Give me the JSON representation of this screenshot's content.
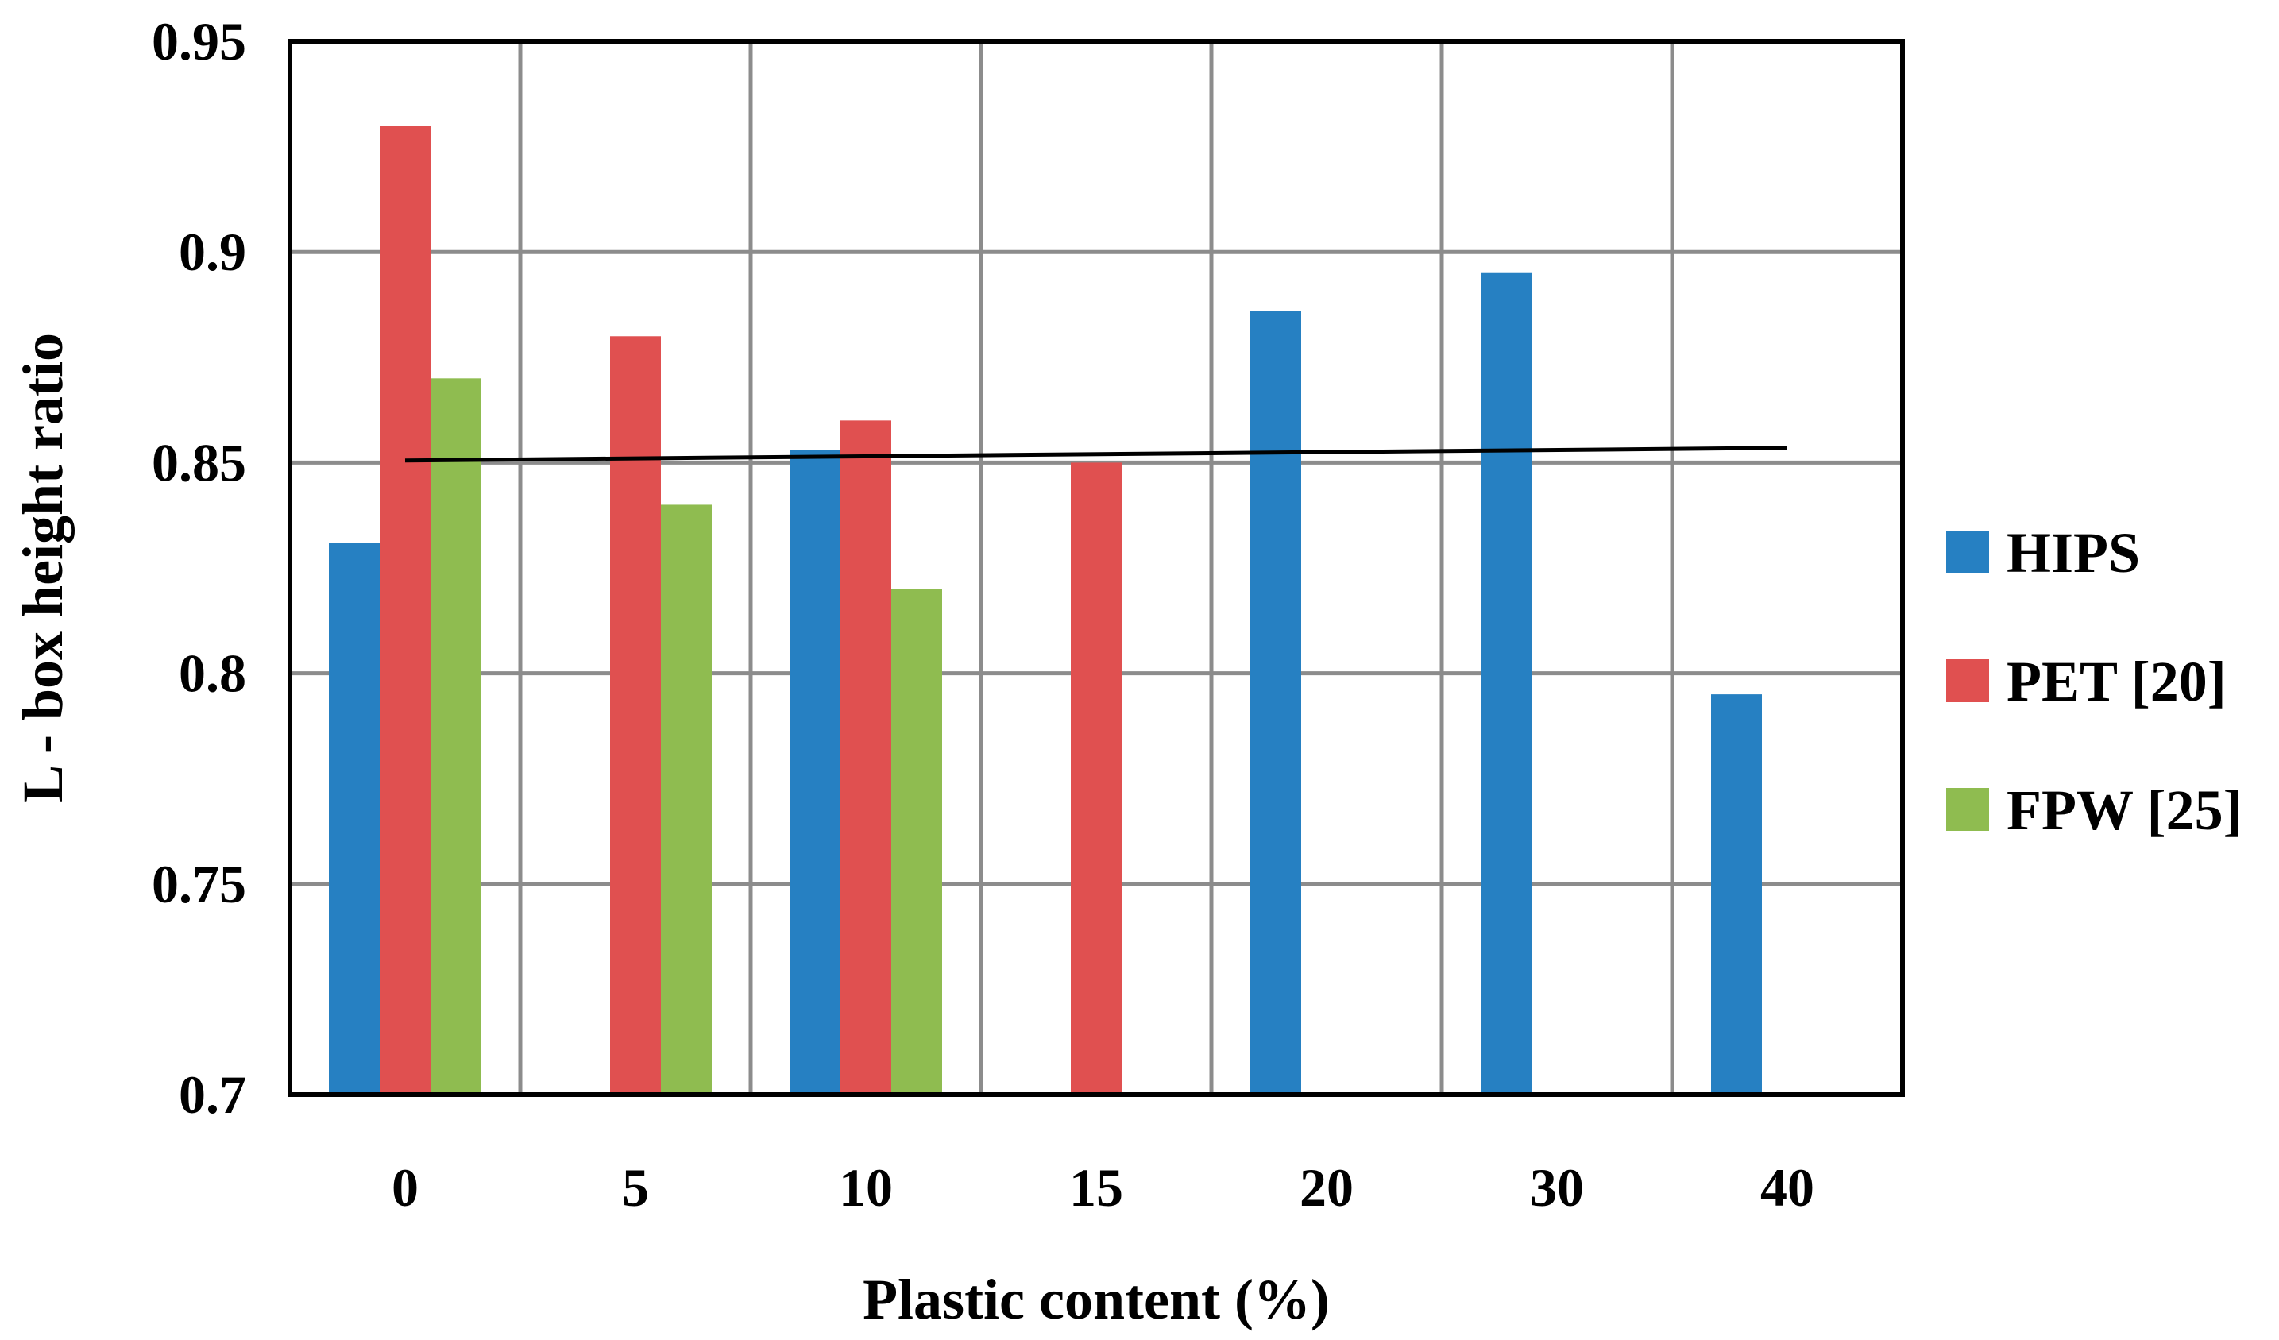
{
  "chart_data": {
    "type": "bar",
    "categories": [
      "0",
      "5",
      "10",
      "15",
      "20",
      "30",
      "40"
    ],
    "series": [
      {
        "name": "HIPS",
        "color": "#2680c2",
        "values": [
          0.831,
          null,
          0.853,
          null,
          0.886,
          0.895,
          0.795
        ]
      },
      {
        "name": "PET [20]",
        "color": "#e05050",
        "values": [
          0.93,
          0.88,
          0.86,
          0.85,
          null,
          null,
          null
        ]
      },
      {
        "name": "FPW [25]",
        "color": "#8fbc50",
        "values": [
          0.87,
          0.84,
          0.82,
          null,
          null,
          null,
          null
        ]
      }
    ],
    "trendline": {
      "series": "HIPS",
      "start": 0.8505,
      "end": 0.8535,
      "color": "#000000"
    },
    "xlabel": "Plastic content (%)",
    "ylabel": "L - box height ratio",
    "ylim": [
      0.7,
      0.95
    ],
    "yticks": [
      "0.7",
      "0.75",
      "0.8",
      "0.85",
      "0.9",
      "0.95"
    ],
    "grid": true,
    "legend_position": "right"
  }
}
